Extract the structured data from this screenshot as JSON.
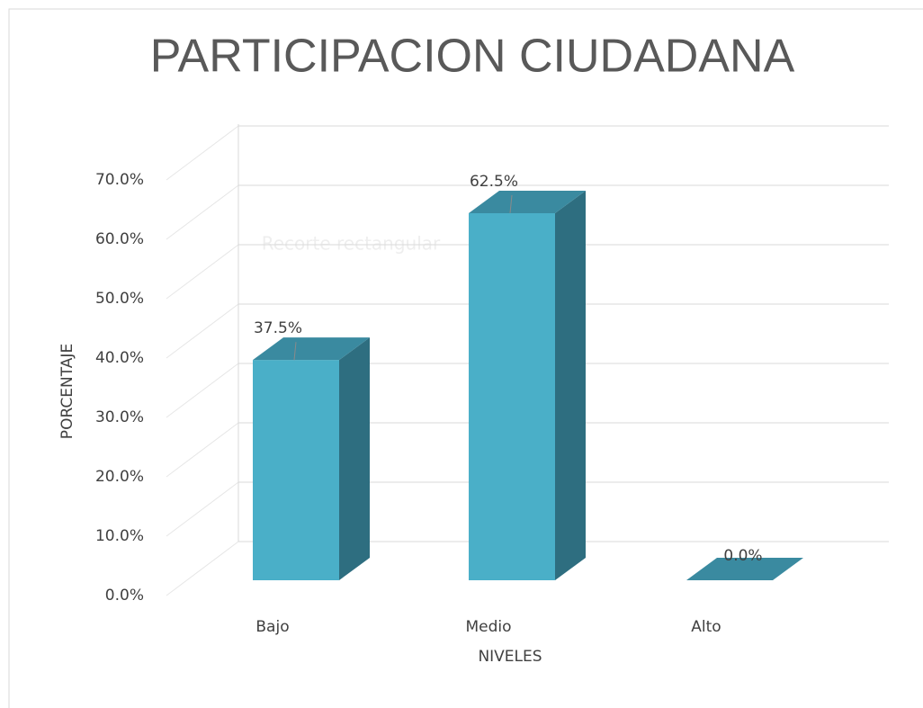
{
  "chart_data": {
    "type": "bar3d",
    "title": "PARTICIPACION CIUDADANA",
    "xlabel": "NIVELES",
    "ylabel": "PORCENTAJE",
    "categories": [
      "Bajo",
      "Medio",
      "Alto"
    ],
    "values": [
      37.5,
      62.5,
      0
    ],
    "value_labels": [
      "37.5%",
      "62.5%",
      "0.0%"
    ],
    "color": "#4aafc8",
    "ylim": [
      0,
      70
    ],
    "yticks": [
      {
        "value": 0,
        "label": "0.0%"
      },
      {
        "value": 10,
        "label": "10.0%"
      },
      {
        "value": 20,
        "label": "20.0%"
      },
      {
        "value": 30,
        "label": "30.0%"
      },
      {
        "value": 40,
        "label": "40.0%"
      },
      {
        "value": 50,
        "label": "50.0%"
      },
      {
        "value": 60,
        "label": "60.0%"
      },
      {
        "value": 70,
        "label": "70.0%"
      }
    ],
    "grid": true,
    "watermark": "Recorte rectangular"
  }
}
